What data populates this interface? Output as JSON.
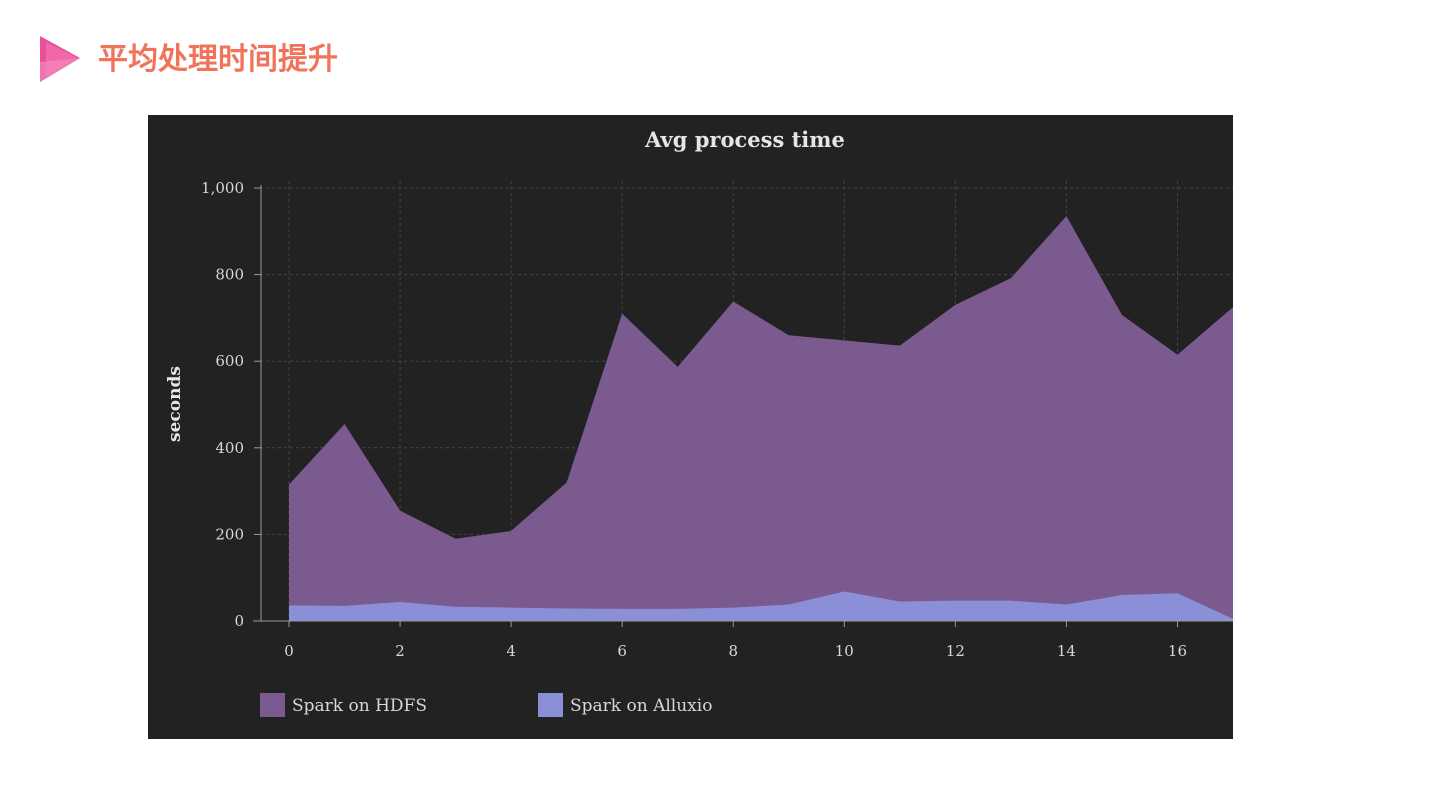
{
  "slide": {
    "title": "平均处理时间提升",
    "accent_color": "#f0735a",
    "icon": "play-triangle-icon"
  },
  "chart_data": {
    "type": "area",
    "title": "Avg process time",
    "xlabel": "",
    "ylabel": "seconds",
    "xlim": [
      0,
      17
    ],
    "ylim": [
      0,
      1000
    ],
    "x_ticks": [
      0,
      2,
      4,
      6,
      8,
      10,
      12,
      14,
      16
    ],
    "y_ticks": [
      0,
      200,
      400,
      600,
      800,
      1000
    ],
    "y_tick_labels": [
      "0",
      "200",
      "400",
      "600",
      "800",
      "1,000"
    ],
    "grid": true,
    "legend_position": "bottom-left",
    "background": "#222222",
    "x": [
      0,
      1,
      2,
      3,
      4,
      5,
      6,
      7,
      8,
      9,
      10,
      11,
      12,
      13,
      14,
      15,
      16,
      17
    ],
    "series": [
      {
        "name": "Spark on HDFS",
        "color": "#7a5a8f",
        "values": [
          315,
          455,
          255,
          190,
          208,
          320,
          710,
          587,
          738,
          660,
          648,
          636,
          730,
          792,
          935,
          707,
          615,
          725
        ]
      },
      {
        "name": "Spark on Alluxio",
        "color": "#8b8fd8",
        "values": [
          36,
          35,
          44,
          33,
          31,
          29,
          28,
          28,
          31,
          38,
          68,
          45,
          47,
          47,
          38,
          60,
          64,
          5
        ]
      }
    ]
  }
}
